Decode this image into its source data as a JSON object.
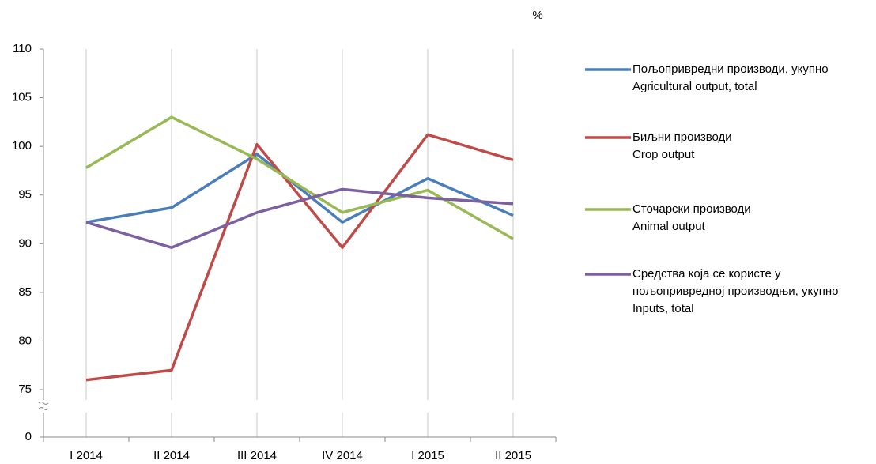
{
  "chart_data": {
    "type": "line",
    "unit_label": "%",
    "categories": [
      "I 2014",
      "II 2014",
      "III 2014",
      "IV 2014",
      "I 2015",
      "II 2015"
    ],
    "ylim": [
      0,
      110
    ],
    "yticks": [
      0,
      75,
      80,
      85,
      90,
      95,
      100,
      105,
      110
    ],
    "y_axis_break": true,
    "grid": true,
    "series": [
      {
        "name": [
          "Пољопривредни производи, укупно",
          "Agricultural output, total"
        ],
        "color": "#4a7ebb",
        "values": [
          92.2,
          93.7,
          99.2,
          92.2,
          96.7,
          92.9
        ]
      },
      {
        "name": [
          "Биљни производи",
          "Crop output"
        ],
        "color": "#be4b48",
        "values": [
          76.0,
          77.0,
          100.2,
          89.6,
          101.2,
          98.6
        ]
      },
      {
        "name": [
          "Сточарски производи",
          "Animal output"
        ],
        "color": "#98b954",
        "values": [
          97.8,
          103.0,
          98.7,
          93.2,
          95.5,
          90.5
        ]
      },
      {
        "name": [
          "Средства која се користе у",
          "пољопривредној производњи, укупно",
          "Inputs, total"
        ],
        "color": "#7d60a0",
        "values": [
          92.2,
          89.6,
          93.2,
          95.6,
          94.7,
          94.1
        ]
      }
    ]
  }
}
